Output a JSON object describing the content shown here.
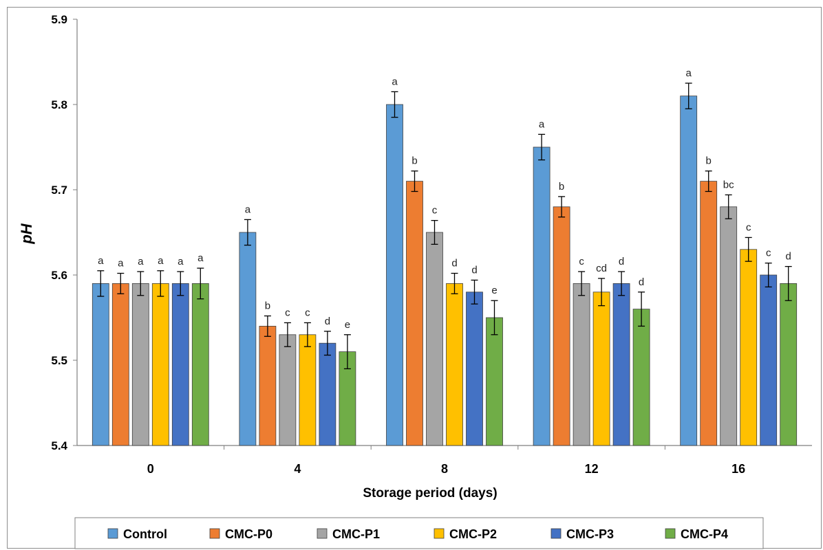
{
  "chart_data": {
    "type": "bar",
    "title": "",
    "xlabel": "Storage period (days)",
    "ylabel": "pH",
    "ylim": [
      5.4,
      5.9
    ],
    "yticks": [
      "5.4",
      "5.5",
      "5.6",
      "5.7",
      "5.8",
      "5.9"
    ],
    "categories": [
      "0",
      "4",
      "8",
      "12",
      "16"
    ],
    "legend_position": "bottom",
    "grid": false,
    "series": [
      {
        "name": "Control",
        "color": "#5B9BD5",
        "values": [
          5.59,
          5.65,
          5.8,
          5.75,
          5.81
        ],
        "errors": [
          0.015,
          0.015,
          0.015,
          0.015,
          0.015
        ],
        "letters": [
          "a",
          "a",
          "a",
          "a",
          "a"
        ]
      },
      {
        "name": "CMC-P0",
        "color": "#ED7D31",
        "values": [
          5.59,
          5.54,
          5.71,
          5.68,
          5.71
        ],
        "errors": [
          0.012,
          0.012,
          0.012,
          0.012,
          0.012
        ],
        "letters": [
          "a",
          "b",
          "b",
          "b",
          "b"
        ]
      },
      {
        "name": "CMC-P1",
        "color": "#A5A5A5",
        "values": [
          5.59,
          5.53,
          5.65,
          5.59,
          5.68
        ],
        "errors": [
          0.014,
          0.014,
          0.014,
          0.014,
          0.014
        ],
        "letters": [
          "a",
          "c",
          "c",
          "c",
          "bc"
        ]
      },
      {
        "name": "CMC-P2",
        "color": "#FFC000",
        "values": [
          5.59,
          5.53,
          5.59,
          5.58,
          5.63
        ],
        "errors": [
          0.015,
          0.014,
          0.012,
          0.016,
          0.014
        ],
        "letters": [
          "a",
          "c",
          "d",
          "cd",
          "c"
        ]
      },
      {
        "name": "CMC-P3",
        "color": "#4472C4",
        "values": [
          5.59,
          5.52,
          5.58,
          5.59,
          5.6
        ],
        "errors": [
          0.014,
          0.014,
          0.014,
          0.014,
          0.014
        ],
        "letters": [
          "a",
          "d",
          "d",
          "d",
          "c"
        ]
      },
      {
        "name": "CMC-P4",
        "color": "#70AD47",
        "values": [
          5.59,
          5.51,
          5.55,
          5.56,
          5.59
        ],
        "errors": [
          0.018,
          0.02,
          0.02,
          0.02,
          0.02
        ],
        "letters": [
          "a",
          "e",
          "e",
          "d",
          "d"
        ]
      }
    ]
  }
}
